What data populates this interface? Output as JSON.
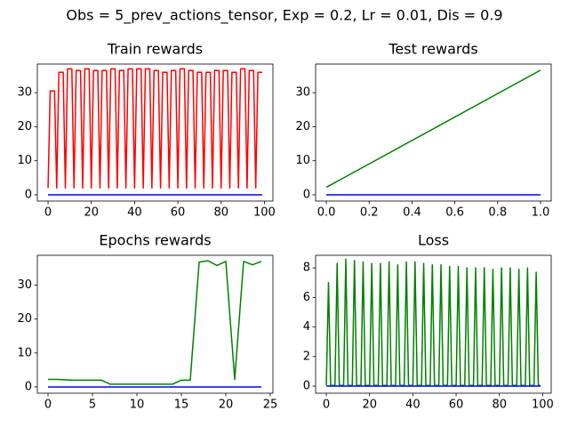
{
  "title": "Obs = 5_prev_actions_tensor, Exp = 0.2, Lr = 0.01, Dis = 0.9",
  "chart_data": [
    {
      "type": "line",
      "title": "Train rewards",
      "xlim": [
        -4.95,
        103.95
      ],
      "ylim": [
        -1.83,
        38.4
      ],
      "xticks": [
        0,
        20,
        40,
        60,
        80,
        100
      ],
      "yticks": [
        0,
        10,
        20,
        30
      ],
      "series": [
        {
          "color": "#ff0000",
          "values": [
            2,
            30.5,
            30.5,
            30.5,
            2,
            36,
            36,
            36,
            2,
            37,
            37,
            37,
            2,
            36.5,
            36.5,
            36.5,
            2,
            37,
            37,
            37,
            2,
            36.5,
            36.5,
            36.5,
            2,
            36.5,
            36.5,
            36.5,
            2,
            37,
            37,
            37,
            2,
            36.5,
            36.5,
            36.5,
            2,
            37,
            37,
            37,
            2,
            37,
            37,
            37,
            2,
            37,
            37,
            37,
            2,
            36.5,
            36.5,
            36.5,
            2,
            36,
            36,
            36,
            2,
            36.5,
            36.5,
            36.5,
            2,
            37,
            37,
            37,
            2,
            36.5,
            36.5,
            36.5,
            2,
            36,
            36,
            36,
            2,
            36,
            36,
            36,
            2,
            36.5,
            36.5,
            36.5,
            2,
            36.5,
            36.5,
            36.5,
            2,
            36,
            36,
            36,
            2,
            37,
            37,
            37,
            2,
            36.5,
            36.5,
            36.5,
            2,
            36,
            36,
            36
          ]
        },
        {
          "color": "#0000ff",
          "values": [
            0,
            0,
            0,
            0,
            0,
            0,
            0,
            0,
            0,
            0,
            0,
            0,
            0,
            0,
            0,
            0,
            0,
            0,
            0,
            0,
            0,
            0,
            0,
            0,
            0,
            0,
            0,
            0,
            0,
            0,
            0,
            0,
            0,
            0,
            0,
            0,
            0,
            0,
            0,
            0,
            0,
            0,
            0,
            0,
            0,
            0,
            0,
            0,
            0,
            0,
            0,
            0,
            0,
            0,
            0,
            0,
            0,
            0,
            0,
            0,
            0,
            0,
            0,
            0,
            0,
            0,
            0,
            0,
            0,
            0,
            0,
            0,
            0,
            0,
            0,
            0,
            0,
            0,
            0,
            0,
            0,
            0,
            0,
            0,
            0,
            0,
            0,
            0,
            0,
            0,
            0,
            0,
            0,
            0,
            0,
            0,
            0,
            0,
            0,
            0
          ]
        }
      ]
    },
    {
      "type": "line",
      "title": "Test rewards",
      "xlim": [
        -0.05,
        1.05
      ],
      "ylim": [
        -1.83,
        38.4
      ],
      "xticks": [
        {
          "value": 0,
          "label": "0.0"
        },
        {
          "value": 0.2,
          "label": "0.2"
        },
        {
          "value": 0.4,
          "label": "0.4"
        },
        {
          "value": 0.6,
          "label": "0.6"
        },
        {
          "value": 0.8,
          "label": "0.8"
        },
        {
          "value": 1,
          "label": "1.0"
        }
      ],
      "yticks": [
        0,
        10,
        20,
        30
      ],
      "series": [
        {
          "color": "#008000",
          "values": [
            2.2,
            36.6
          ]
        },
        {
          "color": "#0000ff",
          "values": [
            0,
            0
          ]
        }
      ]
    },
    {
      "type": "line",
      "title": "Epochs rewards",
      "xlim": [
        -1.2,
        25.3
      ],
      "ylim": [
        -1.85,
        38.8
      ],
      "xticks": [
        0,
        5,
        10,
        15,
        20,
        25
      ],
      "yticks": [
        0,
        10,
        20,
        30
      ],
      "series": [
        {
          "color": "#008000",
          "values": [
            2.2,
            2.2,
            2.1,
            2.0,
            2.0,
            2.0,
            2.0,
            0.8,
            0.8,
            0.8,
            0.8,
            0.8,
            0.8,
            0.8,
            0.8,
            2.0,
            2.0,
            36.8,
            37.2,
            35.8,
            37,
            2.2,
            37,
            36,
            37
          ]
        },
        {
          "color": "#0000ff",
          "values": [
            0,
            0,
            0,
            0,
            0,
            0,
            0,
            0,
            0,
            0,
            0,
            0,
            0,
            0,
            0,
            0,
            0,
            0,
            0,
            0,
            0,
            0,
            0,
            0,
            0
          ]
        }
      ]
    },
    {
      "type": "line",
      "title": "Loss",
      "xlim": [
        -4.95,
        103.95
      ],
      "ylim": [
        -0.48,
        8.85
      ],
      "xticks": [
        0,
        20,
        40,
        60,
        80,
        100
      ],
      "yticks": [
        0,
        2,
        4,
        6,
        8
      ],
      "series": [
        {
          "color": "#008000",
          "values": [
            0.05,
            7.0,
            0.05,
            0.05,
            0.05,
            8.3,
            0.05,
            0.05,
            0.05,
            8.6,
            0.05,
            0.05,
            0.05,
            8.5,
            0.05,
            0.05,
            0.05,
            8.4,
            0.05,
            0.05,
            0.05,
            8.3,
            0.05,
            0.05,
            0.05,
            8.3,
            0.05,
            0.05,
            0.05,
            8.4,
            0.05,
            0.05,
            0.05,
            8.2,
            0.05,
            0.05,
            0.05,
            8.4,
            0.05,
            0.05,
            0.05,
            8.4,
            0.05,
            0.05,
            0.05,
            8.3,
            0.05,
            0.05,
            0.05,
            8.2,
            0.05,
            0.05,
            0.05,
            8.2,
            0.05,
            0.05,
            0.05,
            8.1,
            0.05,
            0.05,
            0.05,
            8.1,
            0.05,
            0.05,
            0.05,
            8.0,
            0.05,
            0.05,
            0.05,
            8.0,
            0.05,
            0.05,
            0.05,
            8.0,
            0.05,
            0.05,
            0.05,
            7.9,
            0.05,
            0.05,
            0.05,
            8.0,
            0.05,
            0.05,
            0.05,
            8.0,
            0.05,
            0.05,
            0.05,
            7.9,
            0.05,
            0.05,
            0.05,
            8.0,
            0.05,
            0.05,
            0.05,
            7.7,
            0.05,
            0.05
          ]
        },
        {
          "color": "#0000ff",
          "values": [
            0,
            0,
            0,
            0,
            0,
            0,
            0,
            0,
            0,
            0,
            0,
            0,
            0,
            0,
            0,
            0,
            0,
            0,
            0,
            0,
            0,
            0,
            0,
            0,
            0,
            0,
            0,
            0,
            0,
            0,
            0,
            0,
            0,
            0,
            0,
            0,
            0,
            0,
            0,
            0,
            0,
            0,
            0,
            0,
            0,
            0,
            0,
            0,
            0,
            0,
            0,
            0,
            0,
            0,
            0,
            0,
            0,
            0,
            0,
            0,
            0,
            0,
            0,
            0,
            0,
            0,
            0,
            0,
            0,
            0,
            0,
            0,
            0,
            0,
            0,
            0,
            0,
            0,
            0,
            0,
            0,
            0,
            0,
            0,
            0,
            0,
            0,
            0,
            0,
            0,
            0,
            0,
            0,
            0,
            0,
            0,
            0,
            0,
            0,
            0
          ]
        }
      ]
    }
  ]
}
